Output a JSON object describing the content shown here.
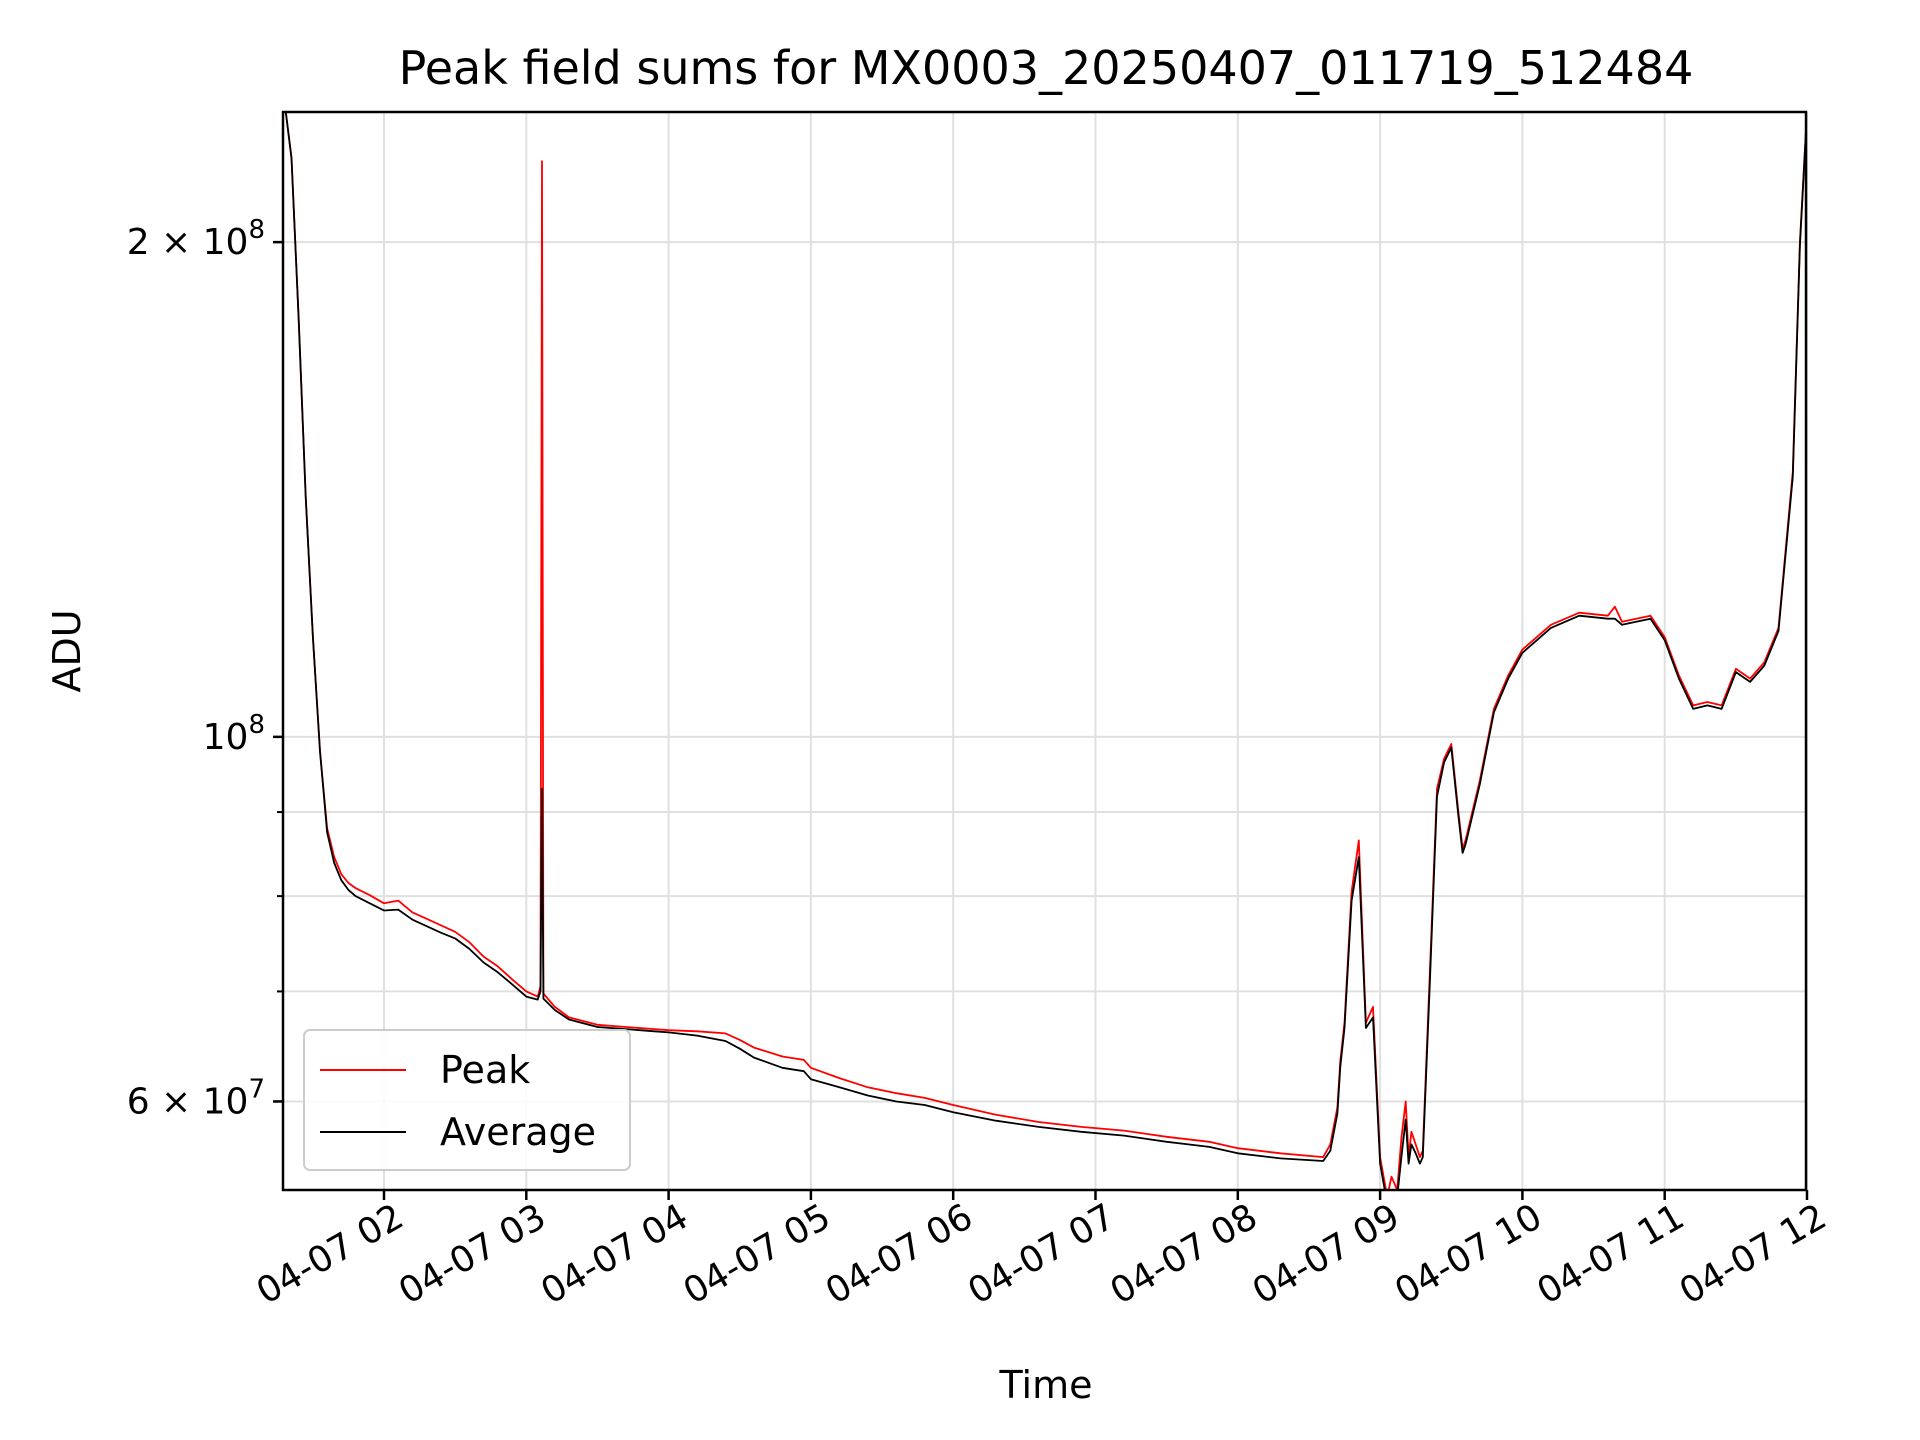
{
  "chart_data": {
    "type": "line",
    "title": "Peak field sums for MX0003_20250407_011719_512484",
    "xlabel": "Time",
    "ylabel": "ADU",
    "x_ticks": [
      "04-07 02",
      "04-07 03",
      "04-07 04",
      "04-07 05",
      "04-07 06",
      "04-07 07",
      "04-07 08",
      "04-07 09",
      "04-07 10",
      "04-07 11",
      "04-07 12"
    ],
    "y_scale": "log",
    "ylim": [
      53000000,
      240000000
    ],
    "y_ticks": [
      {
        "value": 60000000,
        "label": "6 × 10",
        "exp": "7"
      },
      {
        "value": 100000000,
        "label": "10",
        "exp": "8"
      },
      {
        "value": 200000000,
        "label": "2 × 10",
        "exp": "8"
      }
    ],
    "y_minor_ticks": [
      70000000,
      80000000,
      90000000
    ],
    "xlim_hours": [
      1.29,
      12.03
    ],
    "grid": true,
    "legend_position": "lower-left",
    "series": [
      {
        "name": "Peak",
        "color": "#ff0000",
        "x_hours": [
          1.31,
          1.35,
          1.4,
          1.45,
          1.5,
          1.55,
          1.6,
          1.65,
          1.7,
          1.75,
          1.8,
          1.9,
          2.0,
          2.1,
          2.2,
          2.3,
          2.4,
          2.5,
          2.6,
          2.7,
          2.8,
          2.9,
          3.0,
          3.08,
          3.1,
          3.11,
          3.12,
          3.2,
          3.3,
          3.5,
          3.7,
          3.9,
          4.0,
          4.2,
          4.4,
          4.5,
          4.6,
          4.8,
          4.95,
          5.0,
          5.2,
          5.4,
          5.6,
          5.8,
          6.0,
          6.3,
          6.6,
          6.9,
          7.2,
          7.5,
          7.8,
          8.0,
          8.3,
          8.6,
          8.65,
          8.7,
          8.72,
          8.75,
          8.8,
          8.85,
          8.9,
          8.95,
          9.0,
          9.05,
          9.08,
          9.12,
          9.15,
          9.18,
          9.2,
          9.22,
          9.25,
          9.28,
          9.3,
          9.35,
          9.4,
          9.45,
          9.5,
          9.55,
          9.58,
          9.6,
          9.7,
          9.8,
          9.9,
          10.0,
          10.2,
          10.4,
          10.6,
          10.65,
          10.7,
          10.8,
          10.9,
          11.0,
          11.1,
          11.2,
          11.3,
          11.4,
          11.5,
          11.6,
          11.7,
          11.8,
          11.9,
          11.95,
          12.0
        ],
        "values": [
          240000000,
          225000000,
          180000000,
          140000000,
          115000000,
          98000000,
          88000000,
          84500000,
          82500000,
          81500000,
          80900000,
          80100000,
          79200000,
          79500000,
          78200000,
          77500000,
          76800000,
          76100000,
          75000000,
          73500000,
          72500000,
          71200000,
          70000000,
          69500000,
          70500000,
          224000000,
          69800000,
          68500000,
          67500000,
          66800000,
          66600000,
          66400000,
          66300000,
          66200000,
          66000000,
          65400000,
          64700000,
          63900000,
          63600000,
          62900000,
          62000000,
          61200000,
          60700000,
          60300000,
          59700000,
          58900000,
          58300000,
          57900000,
          57600000,
          57100000,
          56700000,
          56200000,
          55800000,
          55500000,
          56500000,
          59500000,
          63500000,
          67000000,
          80500000,
          86500000,
          67000000,
          68500000,
          55500000,
          52500000,
          54000000,
          53000000,
          57000000,
          60000000,
          55500000,
          57500000,
          56500000,
          55500000,
          56000000,
          72000000,
          93000000,
          97000000,
          99000000,
          90000000,
          85500000,
          86500000,
          94000000,
          104000000,
          109000000,
          113000000,
          117000000,
          119000000,
          118500000,
          120000000,
          117500000,
          118000000,
          118500000,
          115000000,
          109000000,
          104500000,
          105000000,
          104500000,
          110000000,
          108500000,
          111000000,
          116500000,
          145000000,
          200000000,
          240000000
        ]
      },
      {
        "name": "Average",
        "color": "#000000",
        "x_hours": [
          1.31,
          1.35,
          1.4,
          1.45,
          1.5,
          1.55,
          1.6,
          1.65,
          1.7,
          1.75,
          1.8,
          1.9,
          2.0,
          2.1,
          2.2,
          2.3,
          2.4,
          2.5,
          2.6,
          2.7,
          2.8,
          2.9,
          3.0,
          3.08,
          3.1,
          3.11,
          3.12,
          3.2,
          3.3,
          3.5,
          3.7,
          3.9,
          4.0,
          4.2,
          4.4,
          4.5,
          4.6,
          4.8,
          4.95,
          5.0,
          5.2,
          5.4,
          5.6,
          5.8,
          6.0,
          6.3,
          6.6,
          6.9,
          7.2,
          7.5,
          7.8,
          8.0,
          8.3,
          8.6,
          8.65,
          8.7,
          8.72,
          8.75,
          8.8,
          8.85,
          8.9,
          8.95,
          9.0,
          9.05,
          9.08,
          9.12,
          9.15,
          9.18,
          9.2,
          9.22,
          9.25,
          9.28,
          9.3,
          9.35,
          9.4,
          9.45,
          9.5,
          9.55,
          9.58,
          9.6,
          9.7,
          9.8,
          9.9,
          10.0,
          10.2,
          10.4,
          10.6,
          10.65,
          10.7,
          10.8,
          10.9,
          11.0,
          11.1,
          11.2,
          11.3,
          11.4,
          11.5,
          11.6,
          11.7,
          11.8,
          11.9,
          11.95,
          12.0
        ],
        "values": [
          240000000,
          225000000,
          180000000,
          140000000,
          115000000,
          98000000,
          87500000,
          83800000,
          81800000,
          80700000,
          80000000,
          79200000,
          78400000,
          78500000,
          77400000,
          76700000,
          76000000,
          75400000,
          74300000,
          72900000,
          71900000,
          70700000,
          69500000,
          69200000,
          70000000,
          93000000,
          69300000,
          68200000,
          67300000,
          66600000,
          66400000,
          66200000,
          66100000,
          65800000,
          65300000,
          64600000,
          63800000,
          62900000,
          62600000,
          61900000,
          61200000,
          60500000,
          60000000,
          59700000,
          59100000,
          58400000,
          57900000,
          57500000,
          57200000,
          56700000,
          56300000,
          55800000,
          55400000,
          55200000,
          56000000,
          59000000,
          63000000,
          66500000,
          79500000,
          84500000,
          66500000,
          67500000,
          55000000,
          52000000,
          53000000,
          52500000,
          55500000,
          58500000,
          55000000,
          56500000,
          55800000,
          55000000,
          55500000,
          71000000,
          92000000,
          96500000,
          98500000,
          89500000,
          85000000,
          86000000,
          93500000,
          103500000,
          108500000,
          112500000,
          116500000,
          118500000,
          118000000,
          118000000,
          117000000,
          117500000,
          118000000,
          114500000,
          108500000,
          104000000,
          104500000,
          104000000,
          109500000,
          108000000,
          110500000,
          116000000,
          144000000,
          199000000,
          240000000
        ]
      }
    ]
  }
}
